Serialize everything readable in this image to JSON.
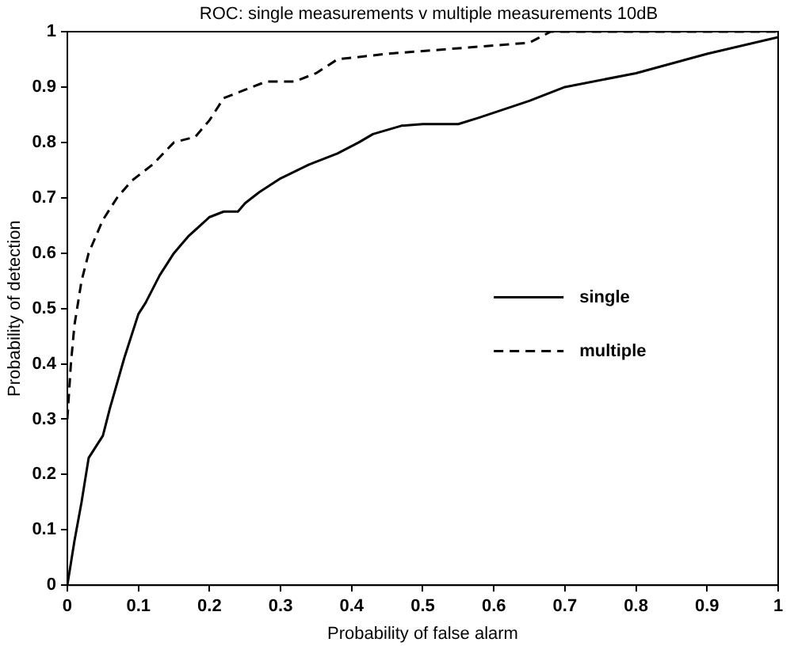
{
  "chart_data": {
    "type": "line",
    "title": "ROC:  single measurements v multiple measurements 10dB",
    "xlabel": "Probability of false alarm",
    "ylabel": "Probability of detection",
    "xlim": [
      0,
      1
    ],
    "ylim": [
      0,
      1
    ],
    "xticks": [
      0,
      0.1,
      0.2,
      0.3,
      0.4,
      0.5,
      0.6,
      0.7,
      0.8,
      0.9,
      1
    ],
    "yticks": [
      0,
      0.1,
      0.2,
      0.3,
      0.4,
      0.5,
      0.6,
      0.7,
      0.8,
      0.9,
      1
    ],
    "grid": false,
    "legend": "right",
    "marker": "none",
    "series": [
      {
        "name": "single",
        "color": "#000000",
        "line_style": "solid",
        "x": [
          0,
          0.01,
          0.02,
          0.03,
          0.05,
          0.06,
          0.08,
          0.1,
          0.11,
          0.13,
          0.15,
          0.17,
          0.2,
          0.22,
          0.24,
          0.25,
          0.27,
          0.3,
          0.34,
          0.38,
          0.41,
          0.43,
          0.47,
          0.5,
          0.55,
          0.58,
          0.65,
          0.7,
          0.8,
          0.9,
          1
        ],
        "values": [
          0,
          0.08,
          0.15,
          0.23,
          0.27,
          0.32,
          0.41,
          0.49,
          0.51,
          0.56,
          0.6,
          0.63,
          0.665,
          0.675,
          0.675,
          0.69,
          0.71,
          0.735,
          0.76,
          0.78,
          0.8,
          0.815,
          0.83,
          0.833,
          0.833,
          0.845,
          0.875,
          0.9,
          0.925,
          0.96,
          0.99
        ]
      },
      {
        "name": "multiple",
        "color": "#000000",
        "line_style": "dashed",
        "x": [
          0,
          0.005,
          0.01,
          0.02,
          0.03,
          0.05,
          0.07,
          0.09,
          0.12,
          0.15,
          0.18,
          0.2,
          0.22,
          0.25,
          0.28,
          0.32,
          0.35,
          0.38,
          0.45,
          0.55,
          0.65,
          0.68,
          1
        ],
        "values": [
          0.3,
          0.4,
          0.47,
          0.55,
          0.6,
          0.66,
          0.7,
          0.73,
          0.76,
          0.8,
          0.81,
          0.84,
          0.88,
          0.895,
          0.91,
          0.91,
          0.925,
          0.95,
          0.96,
          0.97,
          0.98,
          1,
          1
        ]
      }
    ]
  }
}
